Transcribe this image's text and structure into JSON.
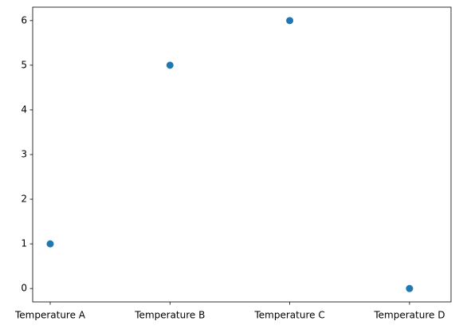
{
  "chart_data": {
    "type": "scatter",
    "categories": [
      "Temperature A",
      "Temperature B",
      "Temperature C",
      "Temperature D"
    ],
    "values": [
      1,
      5,
      6,
      0
    ],
    "color": "#1f77b4",
    "ylim": [
      -0.3,
      6.3
    ],
    "yticks": [
      0,
      1,
      2,
      3,
      4,
      5,
      6
    ],
    "grid": false
  }
}
